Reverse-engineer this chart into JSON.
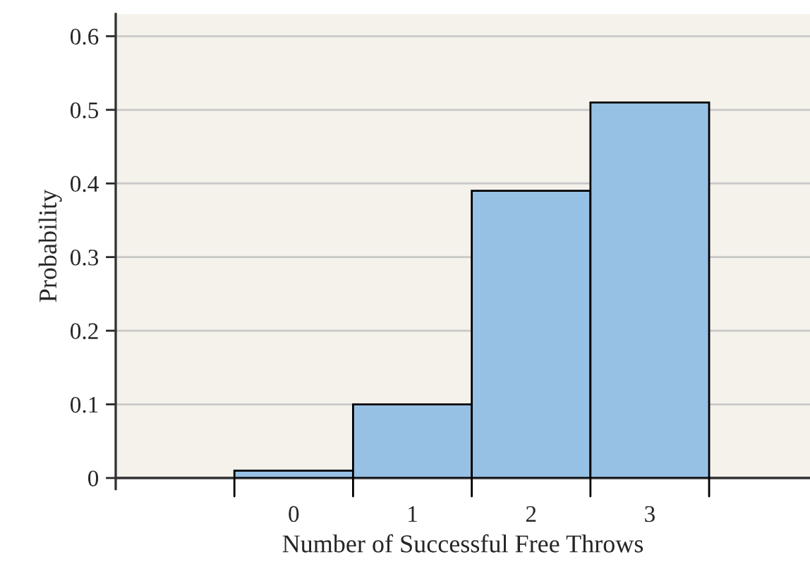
{
  "chart_data": {
    "type": "histogram",
    "xlabel": "Number of Successful Free Throws",
    "ylabel": "Probability",
    "bins": [
      -0.5,
      0.5,
      1.5,
      2.5,
      3.5
    ],
    "values": [
      0.01,
      0.1,
      0.39,
      0.51
    ],
    "color": "#96c1e5",
    "xlim": [
      -1.5,
      4.35
    ],
    "xticks": [
      {
        "value": -0.5,
        "label": null
      },
      {
        "value": 0.5,
        "label": null
      },
      {
        "value": 1.5,
        "label": null
      },
      {
        "value": 2.5,
        "label": null
      },
      {
        "value": 3.5,
        "label": null
      },
      {
        "value": 0,
        "label": "0"
      },
      {
        "value": 1,
        "label": "1"
      },
      {
        "value": 2,
        "label": "2"
      },
      {
        "value": 3,
        "label": "3"
      }
    ],
    "ylim": [
      0,
      0.63
    ],
    "yticks": [
      0,
      0.1,
      0.2,
      0.3,
      0.4,
      0.5,
      0.6
    ],
    "grid": "y"
  }
}
